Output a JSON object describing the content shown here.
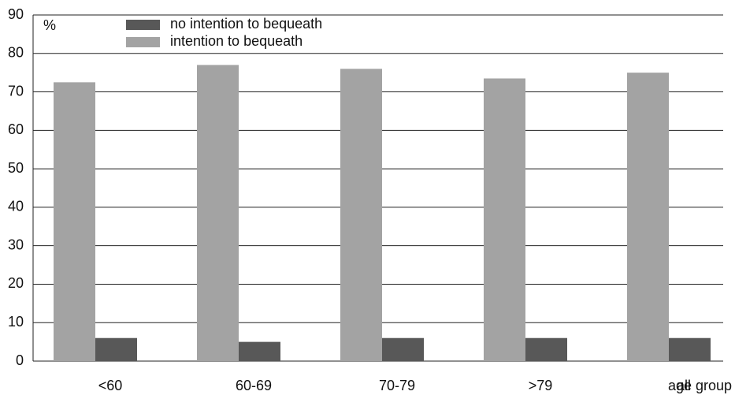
{
  "chart_data": {
    "type": "bar",
    "y_label": "%",
    "x_label": "age group",
    "categories": [
      "<60",
      "60-69",
      "70-79",
      ">79",
      "all"
    ],
    "series": [
      {
        "name": "no intention to bequeath",
        "color": "#585858",
        "values": [
          6,
          5,
          6,
          6,
          6
        ]
      },
      {
        "name": "intention to bequeath",
        "color": "#a3a3a3",
        "values": [
          72.5,
          77,
          76,
          73.5,
          75
        ]
      }
    ],
    "ylim": [
      0,
      90
    ],
    "yticks": [
      0,
      10,
      20,
      30,
      40,
      50,
      60,
      70,
      80,
      90
    ],
    "grid": true
  }
}
